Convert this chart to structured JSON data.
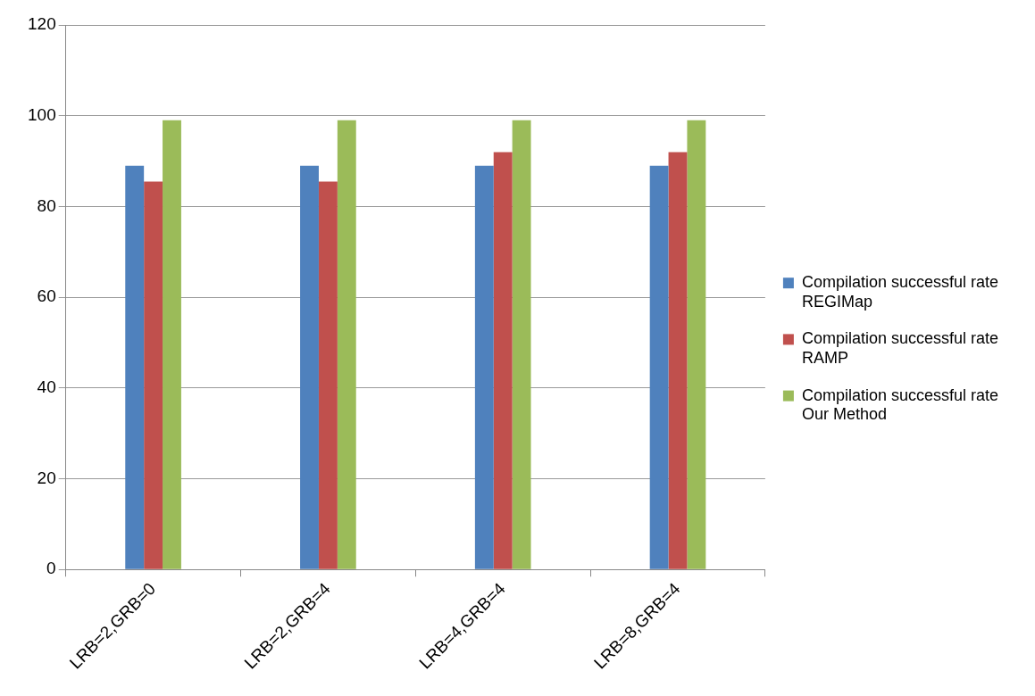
{
  "chart_data": {
    "type": "bar",
    "categories": [
      "LRB=2,GRB=0",
      "LRB=2,GRB=4",
      "LRB=4,GRB=4",
      "LRB=8,GRB=4"
    ],
    "series": [
      {
        "name": "Compilation successful rate REGIMap",
        "color": "#4f81bd",
        "values": [
          89,
          89,
          89,
          89
        ]
      },
      {
        "name": "Compilation successful rate RAMP",
        "color": "#c0504d",
        "values": [
          85.5,
          85.5,
          92,
          92
        ]
      },
      {
        "name": "Compilation successful rate Our Method",
        "color": "#9bbb59",
        "values": [
          99,
          99,
          99,
          99
        ]
      }
    ],
    "ylim": [
      0,
      120
    ],
    "yticks": [
      0,
      20,
      40,
      60,
      80,
      100,
      120
    ],
    "grid": "y",
    "legend": "right"
  }
}
